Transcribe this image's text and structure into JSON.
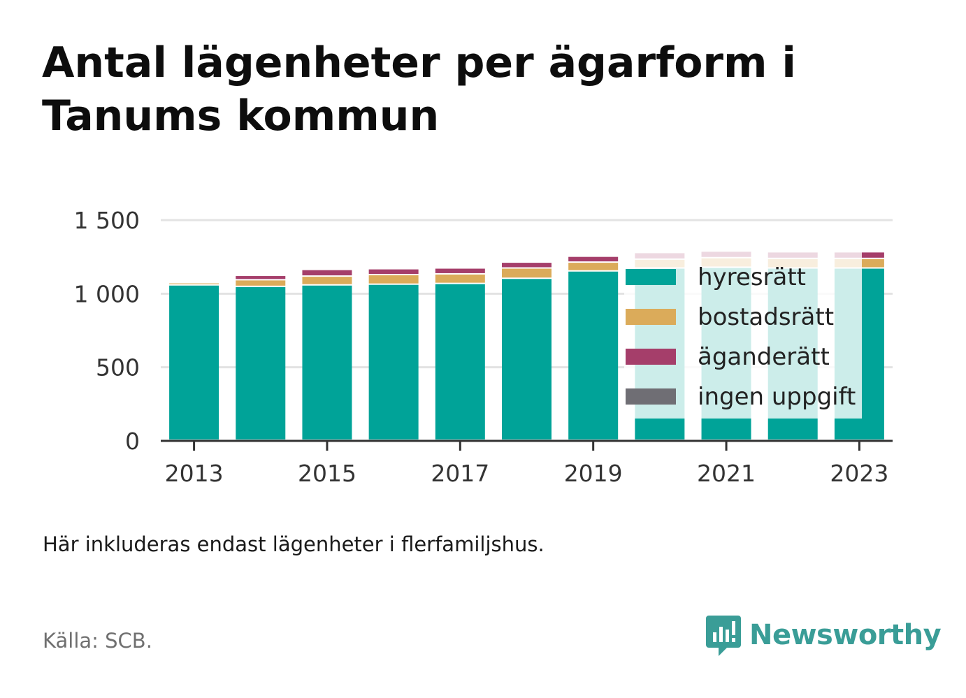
{
  "title": "Antal lägenheter per ägarform i Tanums kommun",
  "note": "Här inkluderas endast lägenheter i flerfamiljshus.",
  "source": "Källa: SCB.",
  "brand": {
    "name": "Newsworthy",
    "color": "#3a9d97",
    "icon": "newsworthy-logo-icon"
  },
  "chart_data": {
    "type": "bar",
    "stacked": true,
    "x": [
      2013,
      2014,
      2015,
      2016,
      2017,
      2018,
      2019,
      2020,
      2021,
      2022,
      2023
    ],
    "x_tick_labels": [
      "2013",
      "2015",
      "2017",
      "2019",
      "2021",
      "2023"
    ],
    "y_ticks": [
      0,
      500,
      1000,
      1500
    ],
    "y_tick_labels": [
      "0",
      "500",
      "1 000",
      "1 500"
    ],
    "ylim": [
      0,
      1500
    ],
    "grid": true,
    "legend": {
      "placement": "inside-right",
      "entries": [
        "hyresrätt",
        "bostadsrätt",
        "äganderätt",
        "ingen uppgift"
      ]
    },
    "series": [
      {
        "name": "hyresrätt",
        "color": "#00a398",
        "values": [
          1055,
          1045,
          1055,
          1060,
          1065,
          1100,
          1150,
          1170,
          1175,
          1170,
          1170
        ]
      },
      {
        "name": "bostadsrätt",
        "color": "#dbab5a",
        "values": [
          15,
          45,
          60,
          65,
          65,
          70,
          60,
          60,
          65,
          65,
          65
        ]
      },
      {
        "name": "äganderätt",
        "color": "#a53e6a",
        "values": [
          0,
          30,
          45,
          40,
          40,
          40,
          40,
          45,
          45,
          45,
          45
        ]
      },
      {
        "name": "ingen uppgift",
        "color": "#6f6e74",
        "values": [
          0,
          0,
          0,
          0,
          0,
          0,
          0,
          0,
          0,
          0,
          0
        ]
      }
    ]
  }
}
